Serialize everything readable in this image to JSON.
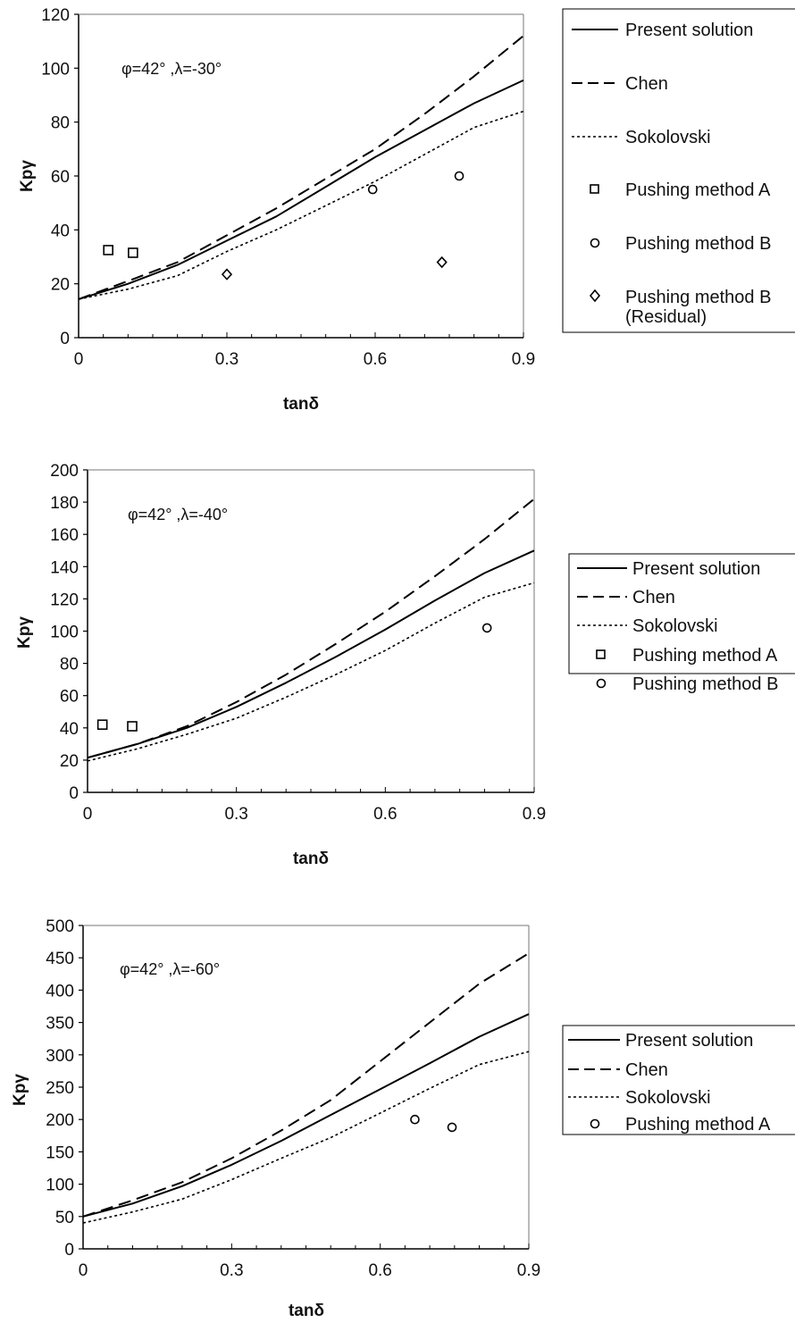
{
  "chart_data": [
    {
      "type": "line",
      "annotation": "φ=42° ,λ=-30°",
      "xlabel": "tanδ",
      "ylabel": "Kpγ",
      "xlim": [
        0,
        0.9
      ],
      "ylim": [
        0,
        120
      ],
      "xticks": [
        0,
        0.3,
        0.6,
        0.9
      ],
      "xtick_labels": [
        "0",
        "0.3",
        "0.6",
        "0.9"
      ],
      "yticks": [
        0,
        20,
        40,
        60,
        80,
        100,
        120
      ],
      "ytick_labels": [
        "0",
        "20",
        "40",
        "60",
        "80",
        "100",
        "120"
      ],
      "grid": false,
      "legend_placement": "right",
      "x": [
        0,
        0.1,
        0.2,
        0.3,
        0.4,
        0.5,
        0.6,
        0.7,
        0.8,
        0.9
      ],
      "series": [
        {
          "name": "Present solution",
          "style": "solid",
          "values": [
            14.3,
            20,
            27,
            36,
            45,
            56,
            67,
            77,
            87,
            95.5
          ]
        },
        {
          "name": "Chen",
          "style": "dashed",
          "values": [
            14.3,
            21,
            28,
            38,
            48,
            59,
            70,
            83,
            97,
            112
          ]
        },
        {
          "name": "Sokolovski",
          "style": "dotted",
          "values": [
            14.3,
            18,
            23,
            32,
            40,
            49,
            58,
            68,
            78,
            84
          ]
        }
      ],
      "points": [
        {
          "name": "Pushing method A",
          "marker": "square",
          "x": [
            0.06,
            0.11
          ],
          "y": [
            32.5,
            31.5
          ]
        },
        {
          "name": "Pushing method B",
          "marker": "circle",
          "x": [
            0.595,
            0.77
          ],
          "y": [
            55,
            60
          ]
        },
        {
          "name": "Pushing method B (Residual)",
          "marker": "diamond",
          "x": [
            0.3,
            0.735
          ],
          "y": [
            23.5,
            28
          ]
        }
      ]
    },
    {
      "type": "line",
      "annotation": "φ=42° ,λ=-40°",
      "xlabel": "tanδ",
      "ylabel": "Kpγ",
      "xlim": [
        0,
        0.9
      ],
      "ylim": [
        0,
        200
      ],
      "xticks": [
        0,
        0.3,
        0.6,
        0.9
      ],
      "xtick_labels": [
        "0",
        "0.3",
        "0.6",
        "0.9"
      ],
      "yticks": [
        0,
        20,
        40,
        60,
        80,
        100,
        120,
        140,
        160,
        180,
        200
      ],
      "ytick_labels": [
        "0",
        "20",
        "40",
        "60",
        "80",
        "100",
        "120",
        "140",
        "160",
        "180",
        "200"
      ],
      "grid": false,
      "legend_placement": "right",
      "x": [
        0,
        0.1,
        0.2,
        0.3,
        0.4,
        0.5,
        0.6,
        0.7,
        0.8,
        0.9
      ],
      "series": [
        {
          "name": "Present solution",
          "style": "solid",
          "values": [
            21.5,
            30,
            40,
            53,
            68,
            84,
            101,
            119,
            136,
            150
          ]
        },
        {
          "name": "Chen",
          "style": "dashed",
          "values": [
            21.5,
            30,
            41,
            56,
            73,
            92,
            112,
            134,
            157,
            182
          ]
        },
        {
          "name": "Sokolovski",
          "style": "dotted",
          "values": [
            19.5,
            27,
            36,
            46,
            59,
            73,
            88,
            105,
            121,
            130
          ]
        }
      ],
      "points": [
        {
          "name": "Pushing method A",
          "marker": "square",
          "x": [
            0.03,
            0.09
          ],
          "y": [
            42,
            41
          ]
        },
        {
          "name": "Pushing method B",
          "marker": "circle",
          "x": [
            0.805
          ],
          "y": [
            102
          ]
        }
      ]
    },
    {
      "type": "line",
      "annotation": "φ=42° ,λ=-60°",
      "xlabel": "tanδ",
      "ylabel": "Kpγ",
      "xlim": [
        0,
        0.9
      ],
      "ylim": [
        0,
        500
      ],
      "xticks": [
        0,
        0.3,
        0.6,
        0.9
      ],
      "xtick_labels": [
        "0",
        "0.3",
        "0.6",
        "0.9"
      ],
      "yticks": [
        0,
        50,
        100,
        150,
        200,
        250,
        300,
        350,
        400,
        450,
        500
      ],
      "ytick_labels": [
        "0",
        "50",
        "100",
        "150",
        "200",
        "250",
        "300",
        "350",
        "400",
        "450",
        "500"
      ],
      "grid": false,
      "legend_placement": "right",
      "x": [
        0,
        0.1,
        0.2,
        0.3,
        0.4,
        0.5,
        0.6,
        0.7,
        0.8,
        0.9
      ],
      "series": [
        {
          "name": "Present solution",
          "style": "solid",
          "values": [
            50,
            70,
            97,
            130,
            167,
            207,
            247,
            287,
            328,
            363
          ]
        },
        {
          "name": "Chen",
          "style": "dashed",
          "values": [
            50,
            75,
            103,
            140,
            183,
            230,
            290,
            350,
            410,
            457
          ]
        },
        {
          "name": "Sokolovski",
          "style": "dotted",
          "values": [
            40,
            57,
            77,
            107,
            140,
            172,
            210,
            248,
            285,
            305
          ]
        }
      ],
      "points": [
        {
          "name": "Pushing method A",
          "marker": "circle",
          "x": [
            0.67,
            0.745
          ],
          "y": [
            200,
            188
          ]
        }
      ]
    }
  ]
}
